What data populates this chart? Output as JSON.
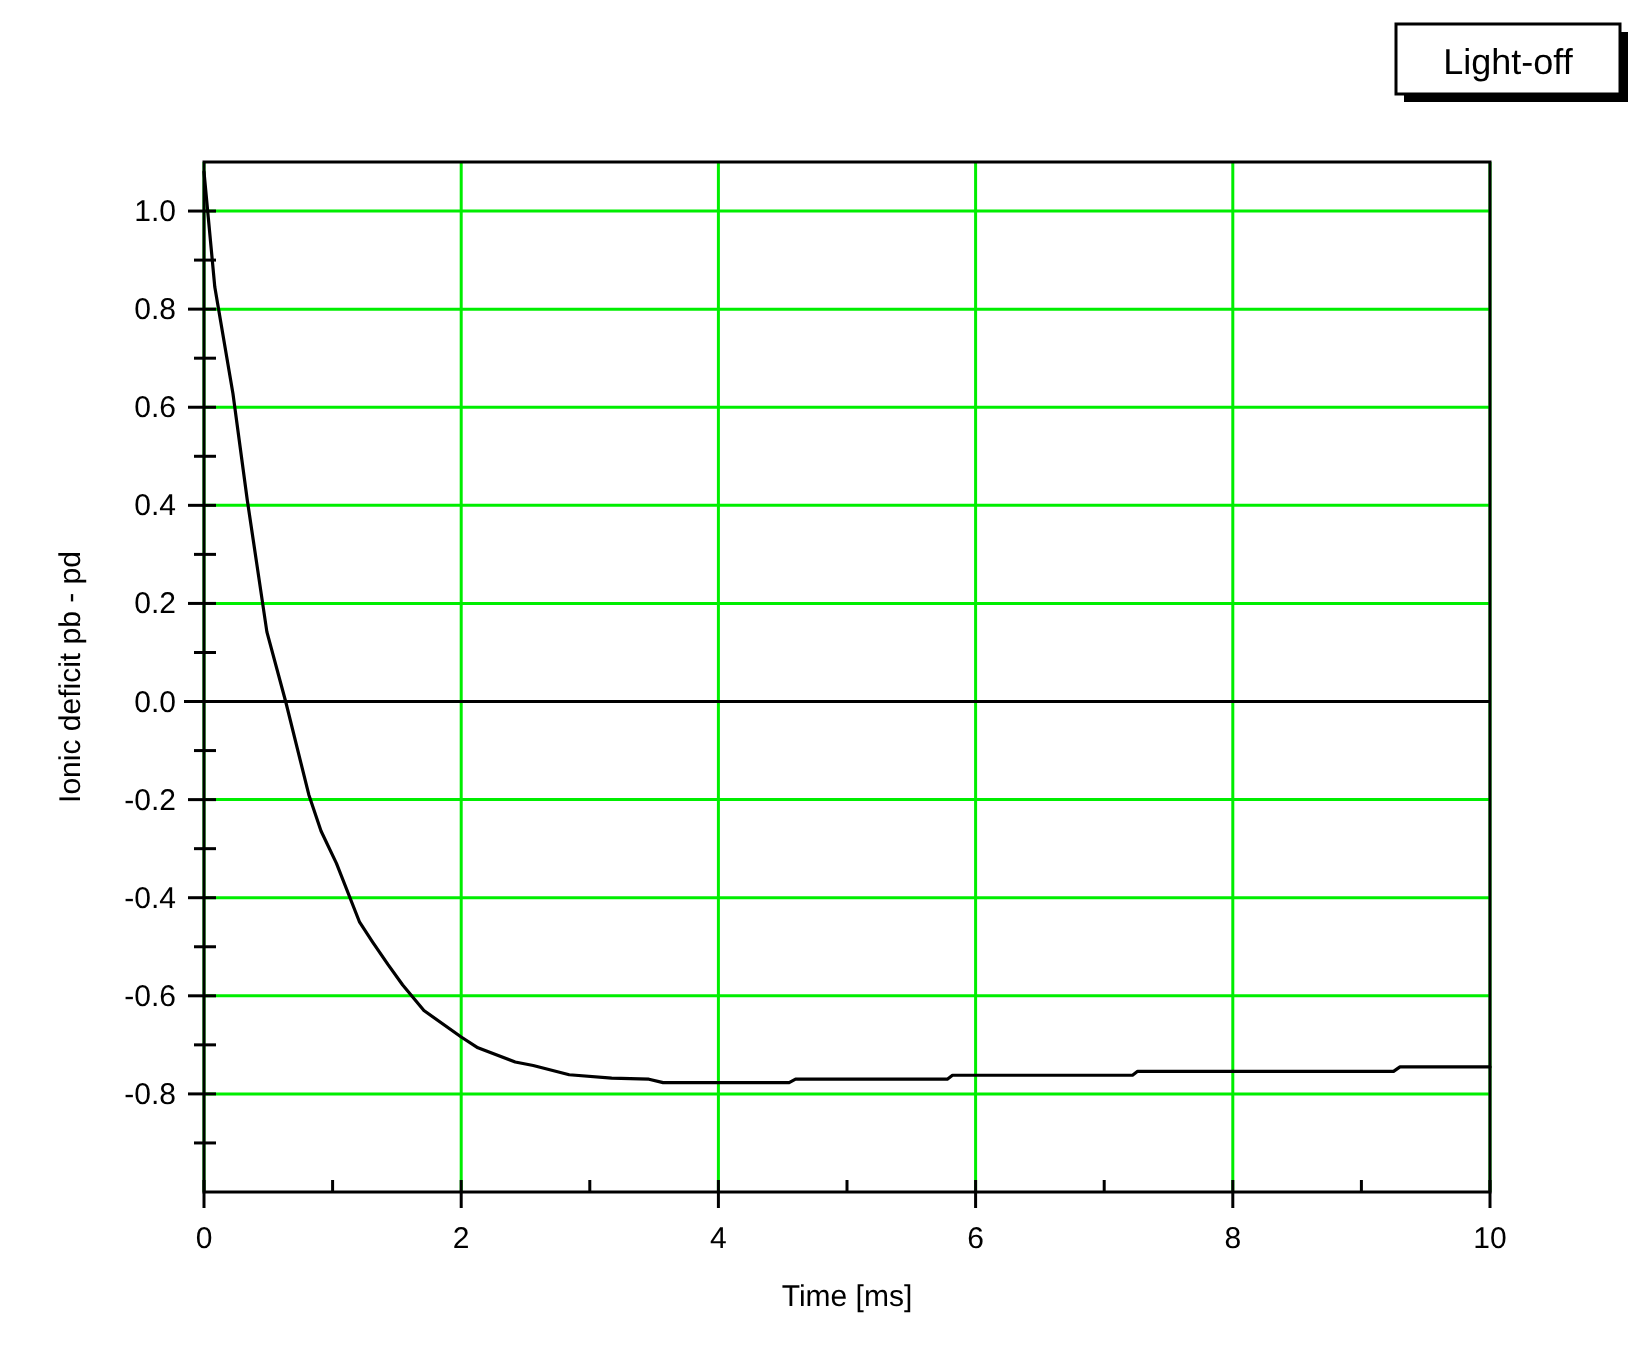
{
  "chart_data": {
    "type": "line",
    "xlabel": "Time [ms]",
    "ylabel": "Ionic deficit pb - pd",
    "annotations": [
      "Light-off"
    ],
    "x": [
      0,
      0.084,
      0.225,
      0.337,
      0.489,
      0.635,
      0.815,
      0.91,
      1.03,
      1.21,
      1.31,
      1.43,
      1.545,
      1.71,
      2.0,
      2.13,
      2.42,
      2.56,
      2.84,
      3.17,
      3.46,
      3.57,
      4.55,
      4.6,
      5.78,
      5.82,
      7.22,
      7.26,
      9.25,
      9.3,
      10
    ],
    "series": [
      {
        "color": "#000000",
        "values": [
          1.08,
          0.845,
          0.628,
          0.41,
          0.142,
          0,
          -0.19,
          -0.264,
          -0.33,
          -0.45,
          -0.49,
          -0.536,
          -0.578,
          -0.63,
          -0.684,
          -0.706,
          -0.735,
          -0.742,
          -0.761,
          -0.768,
          -0.77,
          -0.777,
          -0.777,
          -0.77,
          -0.77,
          -0.762,
          -0.762,
          -0.754,
          -0.754,
          -0.745,
          -0.745
        ]
      }
    ],
    "xlim": [
      0,
      10
    ],
    "ylim": [
      -1.0,
      1.1
    ],
    "xticks": [
      0,
      {
        "value": 1,
        "label": null
      },
      2,
      {
        "value": 3,
        "label": null
      },
      4,
      {
        "value": 5,
        "label": null
      },
      6,
      {
        "value": 7,
        "label": null
      },
      8,
      {
        "value": 9,
        "label": null
      },
      10
    ],
    "yticks": [
      {
        "value": -0.9,
        "label": null
      },
      {
        "value": -0.8,
        "label": "-0.8"
      },
      {
        "value": -0.7,
        "label": null
      },
      {
        "value": -0.6,
        "label": "-0.6"
      },
      {
        "value": -0.5,
        "label": null
      },
      {
        "value": -0.4,
        "label": "-0.4"
      },
      {
        "value": -0.3,
        "label": null
      },
      {
        "value": -0.2,
        "label": "-0.2"
      },
      {
        "value": -0.1,
        "label": null
      },
      {
        "value": 0,
        "label": "0.0"
      },
      {
        "value": 0.1,
        "label": null
      },
      {
        "value": 0.2,
        "label": "0.2"
      },
      {
        "value": 0.3,
        "label": null
      },
      {
        "value": 0.4,
        "label": "0.4"
      },
      {
        "value": 0.5,
        "label": null
      },
      {
        "value": 0.6,
        "label": "0.6"
      },
      {
        "value": 0.7,
        "label": null
      },
      {
        "value": 0.8,
        "label": "0.8"
      },
      {
        "value": 0.9,
        "label": null
      },
      {
        "value": 1.0,
        "label": "1.0"
      }
    ],
    "grid": true,
    "ref_lines": [
      {
        "axis": "y",
        "value": 0,
        "color": "#000000"
      }
    ]
  }
}
